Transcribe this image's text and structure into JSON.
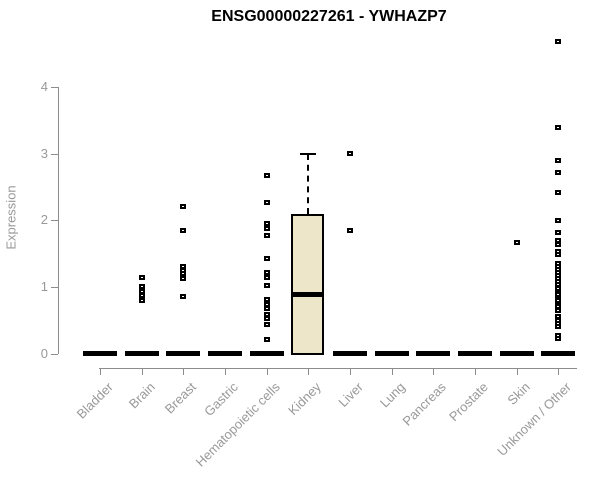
{
  "title": "ENSG00000227261 - YWHAZP7",
  "chart_data": {
    "type": "box",
    "title": "ENSG00000227261 - YWHAZP7",
    "xlabel": "",
    "ylabel": "Expression",
    "ylim": [
      0,
      4.8
    ],
    "yticks": [
      0,
      1,
      2,
      3,
      4
    ],
    "grid": false,
    "legend": "none",
    "categories": [
      "Bladder",
      "Brain",
      "Breast",
      "Gastric",
      "Hematopoietic cells",
      "Kidney",
      "Liver",
      "Lung",
      "Pancreas",
      "Prostate",
      "Skin",
      "Unknown / Other"
    ],
    "series": [
      {
        "name": "Bladder",
        "whisker_low": 0,
        "q1": 0,
        "median": 0,
        "q3": 0,
        "whisker_high": 0,
        "outliers": []
      },
      {
        "name": "Brain",
        "whisker_low": 0,
        "q1": 0,
        "median": 0,
        "q3": 0,
        "whisker_high": 0,
        "outliers": [
          1.14,
          1.0,
          0.93,
          0.87,
          0.8
        ]
      },
      {
        "name": "Breast",
        "whisker_low": 0,
        "q1": 0,
        "median": 0,
        "q3": 0,
        "whisker_high": 0,
        "outliers": [
          2.2,
          1.85,
          1.3,
          1.25,
          1.2,
          1.12,
          0.85
        ]
      },
      {
        "name": "Gastric",
        "whisker_low": 0,
        "q1": 0,
        "median": 0,
        "q3": 0,
        "whisker_high": 0,
        "outliers": []
      },
      {
        "name": "Hematopoietic cells",
        "whisker_low": 0,
        "q1": 0,
        "median": 0,
        "q3": 0,
        "whisker_high": 0,
        "outliers": [
          2.68,
          2.26,
          1.95,
          1.87,
          1.77,
          1.42,
          1.22,
          1.14,
          1.02,
          0.81,
          0.74,
          0.67,
          0.59,
          0.52,
          0.44,
          0.21
        ]
      },
      {
        "name": "Kidney",
        "whisker_low": 0,
        "q1": 0,
        "median": 0.9,
        "q3": 2.1,
        "whisker_high": 3.0,
        "outliers": []
      },
      {
        "name": "Liver",
        "whisker_low": 0,
        "q1": 0,
        "median": 0,
        "q3": 0,
        "whisker_high": 0,
        "outliers": [
          3.0,
          1.85
        ]
      },
      {
        "name": "Lung",
        "whisker_low": 0,
        "q1": 0,
        "median": 0,
        "q3": 0,
        "whisker_high": 0,
        "outliers": []
      },
      {
        "name": "Pancreas",
        "whisker_low": 0,
        "q1": 0,
        "median": 0,
        "q3": 0,
        "whisker_high": 0,
        "outliers": []
      },
      {
        "name": "Prostate",
        "whisker_low": 0,
        "q1": 0,
        "median": 0,
        "q3": 0,
        "whisker_high": 0,
        "outliers": []
      },
      {
        "name": "Skin",
        "whisker_low": 0,
        "q1": 0,
        "median": 0,
        "q3": 0,
        "whisker_high": 0,
        "outliers": [
          1.66
        ]
      },
      {
        "name": "Unknown / Other",
        "whisker_low": 0,
        "q1": 0,
        "median": 0,
        "q3": 0,
        "whisker_high": 0,
        "outliers": [
          4.69,
          3.39,
          2.9,
          2.72,
          2.41,
          2.0,
          1.81,
          1.7,
          1.64,
          1.53,
          1.48,
          1.35,
          1.3,
          1.26,
          1.21,
          1.17,
          1.12,
          1.08,
          1.03,
          0.98,
          0.92,
          0.88,
          0.83,
          0.79,
          0.74,
          0.7,
          0.65,
          0.55,
          0.5,
          0.45,
          0.41,
          0.27,
          0.23
        ]
      }
    ],
    "colors": {
      "box_fill": "#ede6c8",
      "box_border": "#000000",
      "median": "#000000",
      "outlier": "#000000",
      "axis_line": "#8c8c8c",
      "tick_label": "#999999",
      "title": "#000000"
    }
  }
}
